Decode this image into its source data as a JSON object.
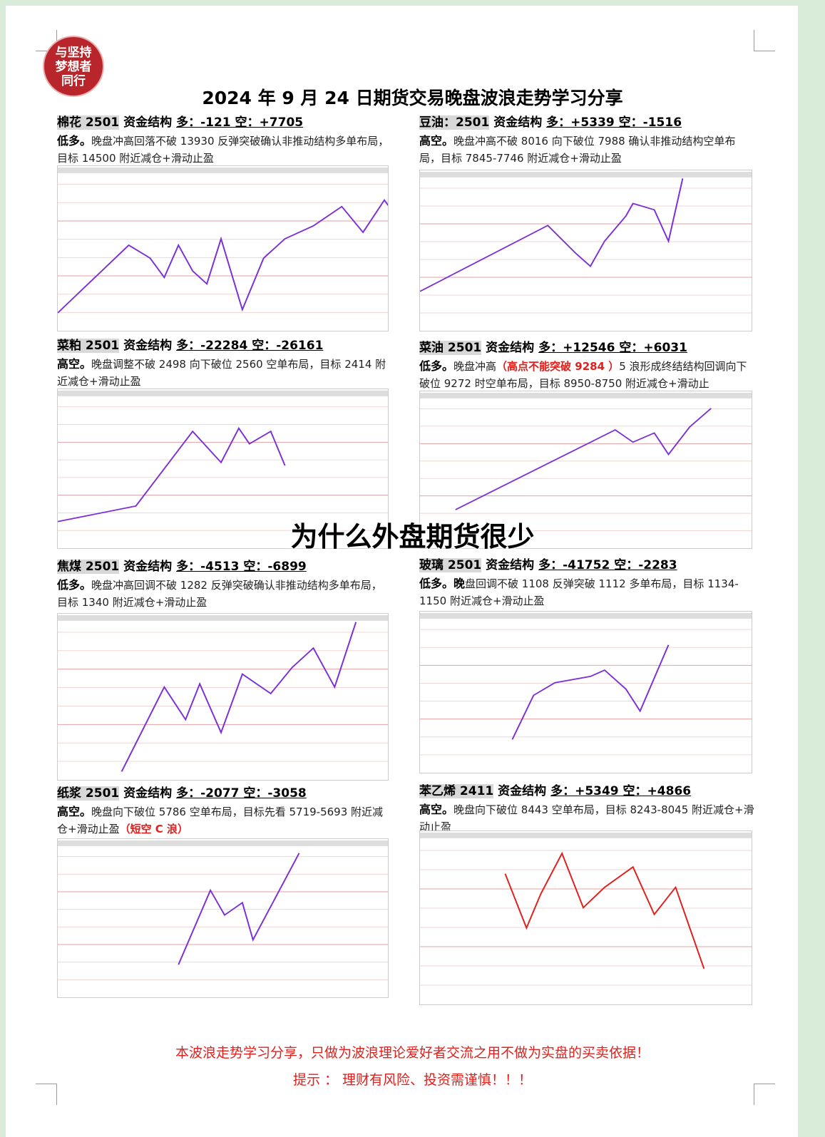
{
  "logo": "与坚持梦想者同行",
  "title": "2024 年 9 月 24 日期货交易晚盘波浪走势学习分享",
  "overlay_title": "为什么外盘期货很少",
  "panels": [
    {
      "name": "棉花 2501",
      "label": "资金结构",
      "flow": "多：-121 空：+7705",
      "bias": "低多。",
      "text": "晚盘冲高回落不破 13930 反弹突破确认非推动结构多单布局，目标 14500 附近减仓+滑动止盈"
    },
    {
      "name": "豆油：2501",
      "label": "资金结构",
      "flow": "多：+5339 空：-1516",
      "bias": "高空。",
      "text": "晚盘冲高不破 8016 向下破位 7988 确认非推动结构空单布局，目标 7845-7746 附近减仓+滑动止盈"
    },
    {
      "name": "菜粕 2501",
      "label": "资金结构",
      "flow": "多：-22284 空：-26161",
      "bias": "高空。",
      "text": "晚盘调整不破 2498 向下破位 2560 空单布局，目标 2414 附近减仓+滑动止盈"
    },
    {
      "name": "菜油 2501",
      "label": "资金结构",
      "flow": "多：+12546 空：+6031",
      "bias": "低多。",
      "text_pre": "晚盘冲高",
      "text_red": "（高点不能突破 9284 ）",
      "text": "5 浪形成终结结构回调向下破位 9272 时空单布局，目标 8950-8750 附近减仓+滑动止"
    },
    {
      "name": "焦煤 2501",
      "label": "资金结构",
      "flow": "多：-4513 空：-6899",
      "bias": "低多。",
      "text": "晚盘冲高回调不破 1282 反弹突破确认非推动结构多单布局，目标 1340 附近减仓+滑动止盈"
    },
    {
      "name": "玻璃 2501",
      "label": "资金结构",
      "flow": "多：-41752 空：-2283",
      "bias": "低多。晚",
      "text": "盘回调不破 1108 反弹突破 1112 多单布局，目标 1134-1150 附近减仓+滑动止盈"
    },
    {
      "name": "纸浆 2501",
      "label": "资金结构",
      "flow": "多：-2077 空：-3058",
      "bias": "高空。",
      "text": "晚盘向下破位 5786 空单布局，目标先看 5719-5693 附近减仓+滑动止盈",
      "text_red": "（短空 C 浪）"
    },
    {
      "name": "苯乙烯 2411",
      "label": "资金结构",
      "flow": "多：+5349 空：+4866",
      "bias": "高空。",
      "text": "晚盘向下破位 8443 空单布局，目标 8243-8045 附近减仓+滑动止盈"
    }
  ],
  "footer": {
    "line1": "本波浪走势学习分享，只做为波浪理论爱好者交流之用不做为实盘的买卖依据！",
    "line2": "提示 ：  理财有风险、投资需谨慎！！！"
  },
  "colors": {
    "wave": "#7b2fd6",
    "target": "#e0201c",
    "footer": "#e0201c"
  }
}
